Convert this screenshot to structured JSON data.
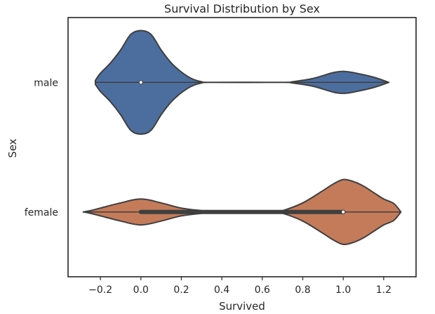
{
  "chart_data": {
    "type": "violin",
    "orientation": "horizontal",
    "title": "Survival Distribution by Sex",
    "xlabel": "Survived",
    "ylabel": "Sex",
    "xlim": [
      -0.36,
      1.36
    ],
    "xticks": [
      -0.2,
      0.0,
      0.2,
      0.4,
      0.6,
      0.8,
      1.0,
      1.2
    ],
    "xtick_labels": [
      "−0.2",
      "0.0",
      "0.2",
      "0.4",
      "0.6",
      "0.8",
      "1.0",
      "1.2"
    ],
    "categories": [
      "male",
      "female"
    ],
    "grid": false,
    "series": [
      {
        "category": "male",
        "color": "#4c6e9f",
        "range": [
          -0.225,
          1.225
        ],
        "median": 0.0,
        "iqr": [
          0.0,
          0.0
        ],
        "density": [
          [
            -0.225,
            0.03
          ],
          [
            -0.2,
            0.14
          ],
          [
            -0.15,
            0.3
          ],
          [
            -0.1,
            0.5
          ],
          [
            -0.05,
            0.74
          ],
          [
            0.0,
            0.8
          ],
          [
            0.05,
            0.74
          ],
          [
            0.1,
            0.5
          ],
          [
            0.15,
            0.3
          ],
          [
            0.2,
            0.16
          ],
          [
            0.25,
            0.06
          ],
          [
            0.3,
            0.01
          ],
          [
            0.35,
            0.0
          ],
          [
            0.7,
            0.0
          ],
          [
            0.75,
            0.01
          ],
          [
            0.85,
            0.06
          ],
          [
            0.95,
            0.15
          ],
          [
            1.0,
            0.17
          ],
          [
            1.05,
            0.15
          ],
          [
            1.15,
            0.08
          ],
          [
            1.225,
            0.0
          ]
        ]
      },
      {
        "category": "female",
        "color": "#c47b59",
        "range": [
          -0.285,
          1.285
        ],
        "median": 1.0,
        "iqr": [
          0.0,
          1.0
        ],
        "density": [
          [
            -0.285,
            0.0
          ],
          [
            -0.25,
            0.02
          ],
          [
            -0.2,
            0.06
          ],
          [
            -0.1,
            0.14
          ],
          [
            0.0,
            0.2
          ],
          [
            0.1,
            0.14
          ],
          [
            0.2,
            0.06
          ],
          [
            0.3,
            0.02
          ],
          [
            0.35,
            0.0
          ],
          [
            0.65,
            0.0
          ],
          [
            0.7,
            0.02
          ],
          [
            0.8,
            0.14
          ],
          [
            0.9,
            0.33
          ],
          [
            0.95,
            0.43
          ],
          [
            1.0,
            0.5
          ],
          [
            1.05,
            0.47
          ],
          [
            1.1,
            0.4
          ],
          [
            1.15,
            0.3
          ],
          [
            1.2,
            0.2
          ],
          [
            1.25,
            0.13
          ],
          [
            1.285,
            0.0
          ]
        ]
      }
    ]
  }
}
